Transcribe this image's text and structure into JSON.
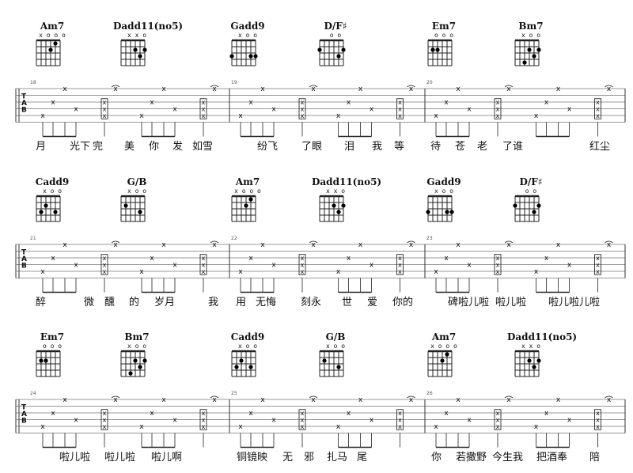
{
  "systems": [
    {
      "measures": [
        "18",
        "19",
        "20"
      ],
      "chords": [
        {
          "name": "Am7",
          "open": "x o  o o"
        },
        {
          "name": "Dadd11(no5)",
          "open": "x  x o"
        },
        {
          "name": "Gadd9",
          "open": "x o o"
        },
        {
          "name": "D/F♯",
          "open": "o o"
        },
        {
          "name": "Em7",
          "open": "o   o o"
        },
        {
          "name": "Bm7",
          "open": "x  o  o"
        }
      ],
      "lyrics": [
        "月",
        "光下",
        "完",
        "美",
        "你",
        "发",
        "如雪",
        "纷飞",
        "了眼",
        "泪",
        "我",
        "等",
        "待",
        "苍",
        "老",
        "了谁",
        "红尘"
      ]
    },
    {
      "measures": [
        "21",
        "22",
        "23"
      ],
      "chords": [
        {
          "name": "Cadd9",
          "open": "x   o o"
        },
        {
          "name": "G/B",
          "open": "x  o o"
        },
        {
          "name": "Am7",
          "open": "x o  o o"
        },
        {
          "name": "Dadd11(no5)",
          "open": "x  x o"
        },
        {
          "name": "Gadd9",
          "open": "x o o"
        },
        {
          "name": "D/F♯",
          "open": "o o"
        }
      ],
      "lyrics": [
        "醉",
        "微",
        "醺",
        "的",
        "岁月",
        "我",
        "用",
        "无悔",
        "刻永",
        "世",
        "爱",
        "你的",
        "碑啦儿啦",
        "啦儿啦",
        "啦儿啦儿啦"
      ]
    },
    {
      "measures": [
        "24",
        "25",
        "26"
      ],
      "chords": [
        {
          "name": "Em7",
          "open": "o   o o"
        },
        {
          "name": "Bm7",
          "open": "x  o  o"
        },
        {
          "name": "Cadd9",
          "open": "x   o o"
        },
        {
          "name": "G/B",
          "open": "x  o o"
        },
        {
          "name": "Am7",
          "open": "x o  o o"
        },
        {
          "name": "Dadd11(no5)",
          "open": "x  x o"
        }
      ],
      "lyrics": [
        "啦儿啦",
        "啦儿啦",
        "啦儿啊",
        "铜镜映",
        "无",
        "邪",
        "扎马",
        "尾",
        "你",
        "若撒野",
        "今生我",
        "把酒奉",
        "陪"
      ]
    }
  ],
  "tab_clef": [
    "T",
    "A",
    "B"
  ]
}
